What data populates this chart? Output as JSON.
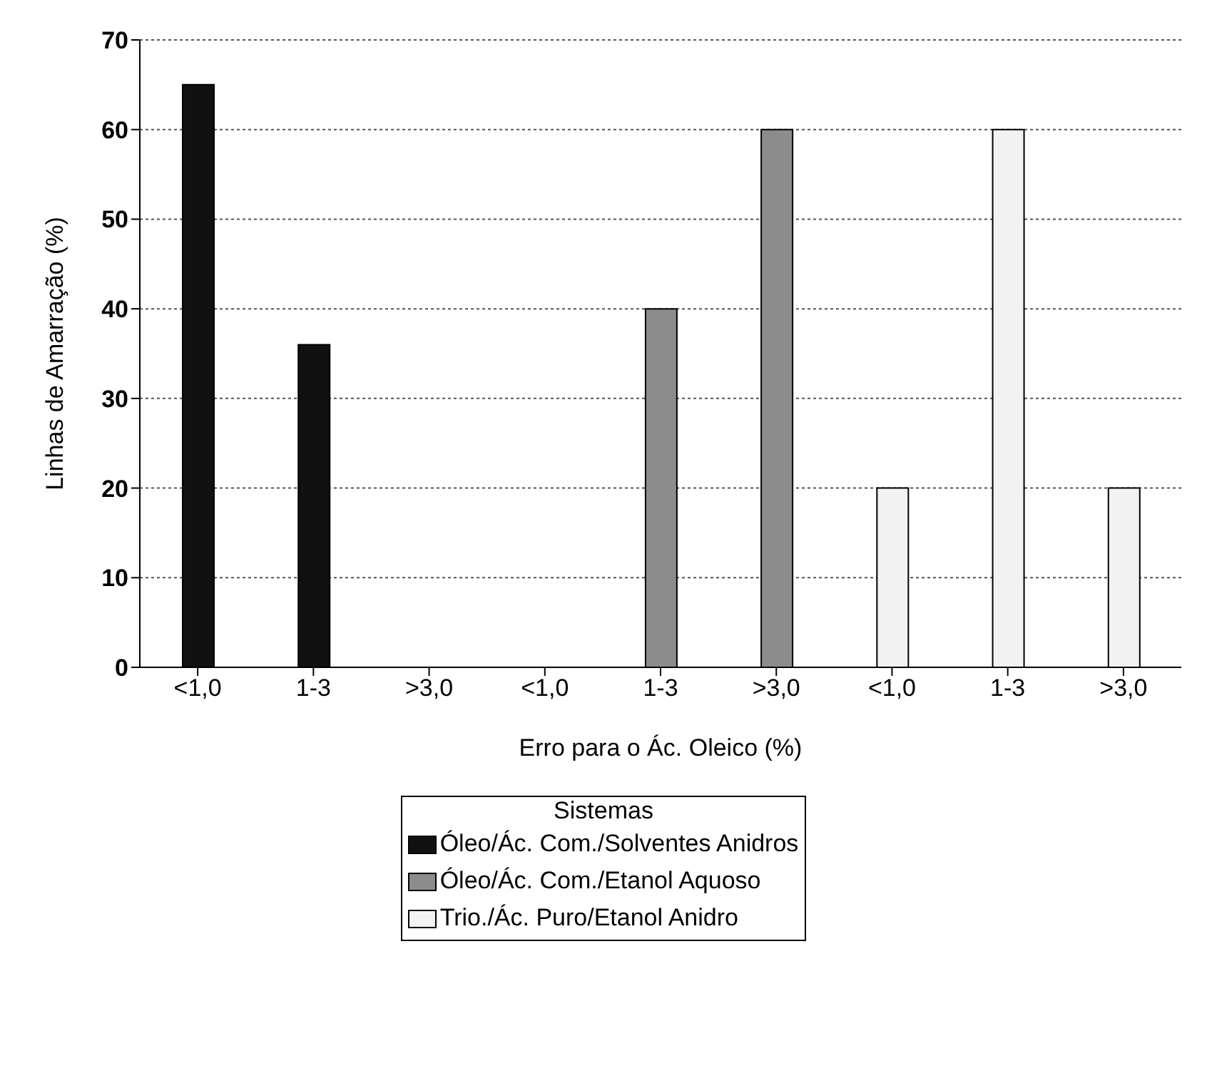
{
  "chart_data": {
    "type": "bar",
    "xlabel": "Erro para o Ác. Oleico (%)",
    "ylabel": "Linhas de Amarração (%)",
    "legend_title": "Sistemas",
    "categories": [
      "<1,0",
      "1-3",
      ">3,0",
      "<1,0",
      "1-3",
      ">3,0",
      "<1,0",
      "1-3",
      ">3,0"
    ],
    "series": [
      {
        "name": "Óleo/Ác. Com./Solventes Anidros",
        "color": "#111111",
        "values": [
          65,
          36,
          0,
          null,
          null,
          null,
          null,
          null,
          null
        ]
      },
      {
        "name": "Óleo/Ác. Com./Etanol Aquoso",
        "color": "#8c8c8c",
        "values": [
          null,
          null,
          null,
          0,
          40,
          60,
          null,
          null,
          null
        ]
      },
      {
        "name": "Trio./Ác. Puro/Etanol Anidro",
        "color": "#f2f2f2",
        "values": [
          null,
          null,
          null,
          null,
          null,
          null,
          20,
          60,
          20
        ]
      }
    ],
    "ylim": [
      0,
      70
    ],
    "yticks": [
      0,
      10,
      20,
      30,
      40,
      50,
      60,
      70
    ],
    "grid": "y",
    "legend": "bottom"
  }
}
